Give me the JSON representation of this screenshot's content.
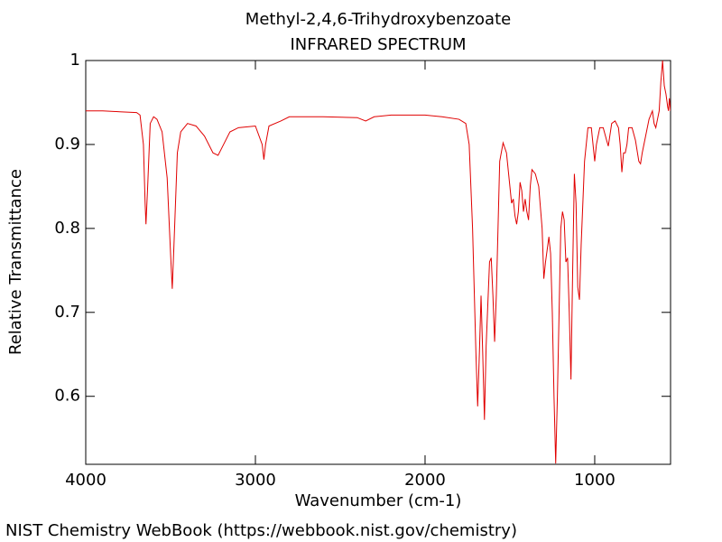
{
  "chart_data": {
    "type": "line",
    "title": "Methyl-2,4,6-Trihydroxybenzoate",
    "subtitle": "INFRARED SPECTRUM",
    "x_label": "Wavenumber (cm-1)",
    "y_label": "Relative Transmittance",
    "source": "NIST Chemistry WebBook (https://webbook.nist.gov/chemistry)",
    "xlim": [
      4000,
      553
    ],
    "ylim": [
      0.519,
      1
    ],
    "xticks": [
      4000,
      3000,
      2000,
      1000
    ],
    "yticks": [
      0.6,
      0.7,
      0.8,
      0.9,
      1
    ],
    "series": [
      {
        "color": "#e00000",
        "x": [
          4000,
          3900,
          3800,
          3700,
          3680,
          3660,
          3650,
          3645,
          3635,
          3620,
          3600,
          3580,
          3550,
          3520,
          3500,
          3490,
          3480,
          3460,
          3440,
          3400,
          3350,
          3300,
          3250,
          3220,
          3200,
          3150,
          3100,
          3000,
          2960,
          2950,
          2940,
          2920,
          2850,
          2800,
          2600,
          2400,
          2350,
          2300,
          2200,
          2000,
          1900,
          1800,
          1760,
          1740,
          1720,
          1700,
          1690,
          1680,
          1670,
          1660,
          1650,
          1640,
          1620,
          1610,
          1600,
          1590,
          1580,
          1560,
          1540,
          1520,
          1500,
          1490,
          1480,
          1470,
          1460,
          1450,
          1440,
          1430,
          1420,
          1410,
          1400,
          1390,
          1380,
          1370,
          1350,
          1330,
          1310,
          1300,
          1290,
          1270,
          1260,
          1250,
          1240,
          1230,
          1220,
          1200,
          1190,
          1180,
          1170,
          1160,
          1150,
          1140,
          1130,
          1120,
          1110,
          1100,
          1090,
          1080,
          1060,
          1040,
          1020,
          1010,
          1000,
          990,
          970,
          950,
          930,
          920,
          900,
          880,
          860,
          850,
          840,
          830,
          820,
          810,
          800,
          780,
          760,
          740,
          730,
          720,
          700,
          680,
          660,
          650,
          640,
          630,
          620,
          610,
          600,
          590,
          580,
          570,
          565,
          560,
          553
        ],
        "values": [
          0.94,
          0.94,
          0.939,
          0.938,
          0.935,
          0.9,
          0.83,
          0.805,
          0.85,
          0.925,
          0.933,
          0.93,
          0.915,
          0.86,
          0.77,
          0.728,
          0.78,
          0.89,
          0.915,
          0.925,
          0.922,
          0.91,
          0.89,
          0.887,
          0.895,
          0.915,
          0.92,
          0.922,
          0.9,
          0.882,
          0.9,
          0.922,
          0.928,
          0.933,
          0.933,
          0.932,
          0.928,
          0.933,
          0.935,
          0.935,
          0.933,
          0.93,
          0.925,
          0.9,
          0.8,
          0.65,
          0.588,
          0.65,
          0.72,
          0.65,
          0.572,
          0.66,
          0.76,
          0.765,
          0.72,
          0.665,
          0.72,
          0.88,
          0.902,
          0.89,
          0.85,
          0.83,
          0.835,
          0.815,
          0.805,
          0.82,
          0.855,
          0.845,
          0.82,
          0.835,
          0.82,
          0.81,
          0.85,
          0.87,
          0.865,
          0.85,
          0.8,
          0.74,
          0.76,
          0.79,
          0.77,
          0.7,
          0.6,
          0.52,
          0.6,
          0.8,
          0.82,
          0.81,
          0.76,
          0.765,
          0.7,
          0.62,
          0.75,
          0.865,
          0.83,
          0.73,
          0.715,
          0.78,
          0.88,
          0.92,
          0.92,
          0.9,
          0.88,
          0.9,
          0.92,
          0.92,
          0.905,
          0.898,
          0.925,
          0.928,
          0.92,
          0.9,
          0.867,
          0.89,
          0.89,
          0.9,
          0.92,
          0.92,
          0.905,
          0.88,
          0.877,
          0.89,
          0.91,
          0.93,
          0.94,
          0.925,
          0.92,
          0.93,
          0.94,
          0.975,
          1.0,
          0.97,
          0.96,
          0.945,
          0.94,
          0.955,
          0.94
        ]
      }
    ]
  }
}
